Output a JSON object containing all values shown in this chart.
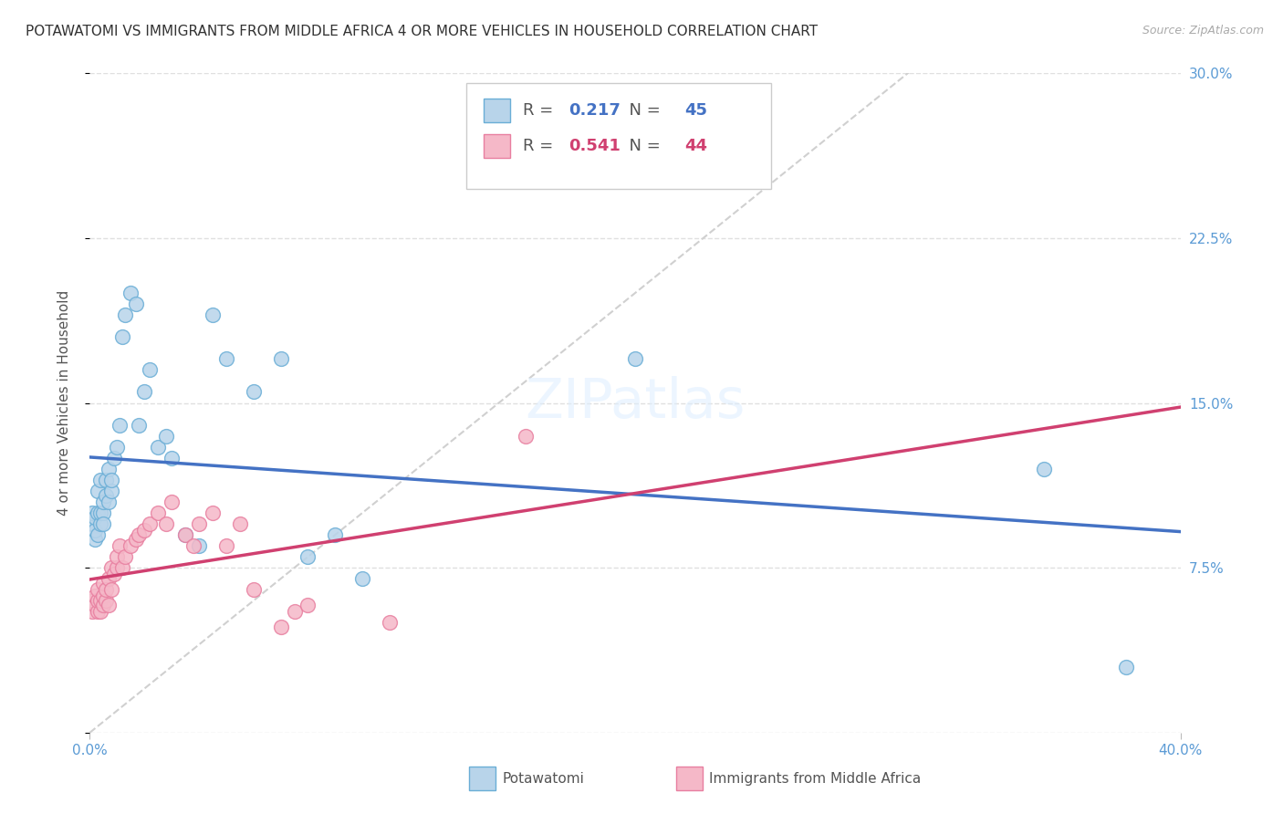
{
  "title": "POTAWATOMI VS IMMIGRANTS FROM MIDDLE AFRICA 4 OR MORE VEHICLES IN HOUSEHOLD CORRELATION CHART",
  "source": "Source: ZipAtlas.com",
  "ylabel": "4 or more Vehicles in Household",
  "xlim": [
    0.0,
    0.4
  ],
  "ylim": [
    0.0,
    0.3
  ],
  "yticks": [
    0.0,
    0.075,
    0.15,
    0.225,
    0.3
  ],
  "ytick_labels": [
    "",
    "7.5%",
    "15.0%",
    "22.5%",
    "30.0%"
  ],
  "xticks": [
    0.0,
    0.4
  ],
  "xtick_labels": [
    "0.0%",
    "40.0%"
  ],
  "series1_name": "Potawatomi",
  "series1_R": "0.217",
  "series1_N": "45",
  "series1_color": "#b8d4ea",
  "series1_edge": "#6aaed6",
  "series2_name": "Immigrants from Middle Africa",
  "series2_R": "0.541",
  "series2_N": "44",
  "series2_color": "#f5b8c8",
  "series2_edge": "#e87fa0",
  "trendline1_color": "#4472c4",
  "trendline2_color": "#d04070",
  "refline_color": "#d0d0d0",
  "background_color": "#ffffff",
  "grid_color": "#e0e0e0",
  "title_fontsize": 11,
  "label_color": "#5b9bd5",
  "ylabel_color": "#555555",
  "series1_x": [
    0.001,
    0.001,
    0.002,
    0.002,
    0.002,
    0.003,
    0.003,
    0.003,
    0.004,
    0.004,
    0.004,
    0.005,
    0.005,
    0.005,
    0.006,
    0.006,
    0.007,
    0.007,
    0.008,
    0.008,
    0.009,
    0.01,
    0.011,
    0.012,
    0.013,
    0.015,
    0.017,
    0.018,
    0.02,
    0.022,
    0.025,
    0.028,
    0.03,
    0.035,
    0.04,
    0.045,
    0.05,
    0.06,
    0.07,
    0.08,
    0.09,
    0.1,
    0.2,
    0.35,
    0.38
  ],
  "series1_y": [
    0.095,
    0.1,
    0.088,
    0.092,
    0.098,
    0.09,
    0.1,
    0.11,
    0.095,
    0.1,
    0.115,
    0.1,
    0.105,
    0.095,
    0.108,
    0.115,
    0.105,
    0.12,
    0.11,
    0.115,
    0.125,
    0.13,
    0.14,
    0.18,
    0.19,
    0.2,
    0.195,
    0.14,
    0.155,
    0.165,
    0.13,
    0.135,
    0.125,
    0.09,
    0.085,
    0.19,
    0.17,
    0.155,
    0.17,
    0.08,
    0.09,
    0.07,
    0.17,
    0.12,
    0.03
  ],
  "series2_x": [
    0.001,
    0.001,
    0.002,
    0.002,
    0.003,
    0.003,
    0.003,
    0.004,
    0.004,
    0.005,
    0.005,
    0.005,
    0.006,
    0.006,
    0.007,
    0.007,
    0.008,
    0.008,
    0.009,
    0.01,
    0.01,
    0.011,
    0.012,
    0.013,
    0.015,
    0.017,
    0.018,
    0.02,
    0.022,
    0.025,
    0.028,
    0.03,
    0.035,
    0.038,
    0.04,
    0.045,
    0.05,
    0.055,
    0.06,
    0.07,
    0.075,
    0.08,
    0.11,
    0.16
  ],
  "series2_y": [
    0.055,
    0.06,
    0.058,
    0.062,
    0.055,
    0.06,
    0.065,
    0.055,
    0.06,
    0.058,
    0.062,
    0.068,
    0.06,
    0.065,
    0.058,
    0.07,
    0.065,
    0.075,
    0.072,
    0.075,
    0.08,
    0.085,
    0.075,
    0.08,
    0.085,
    0.088,
    0.09,
    0.092,
    0.095,
    0.1,
    0.095,
    0.105,
    0.09,
    0.085,
    0.095,
    0.1,
    0.085,
    0.095,
    0.065,
    0.048,
    0.055,
    0.058,
    0.05,
    0.135
  ]
}
